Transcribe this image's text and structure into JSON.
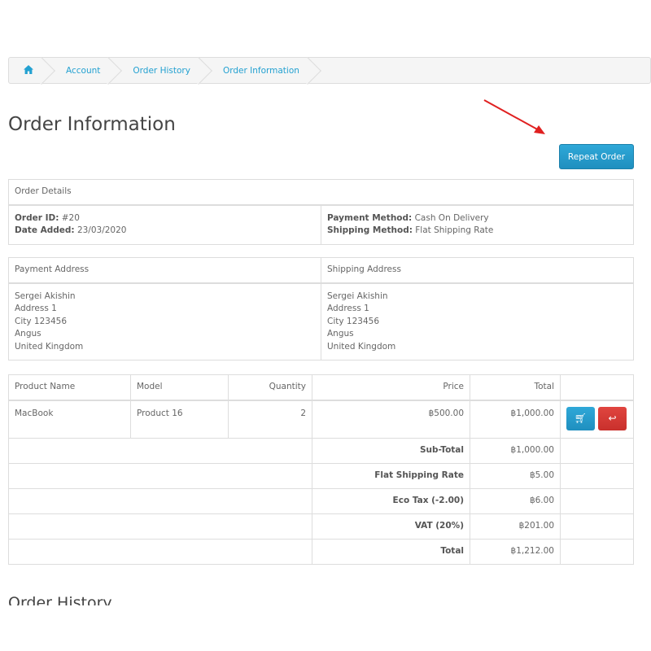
{
  "breadcrumb": {
    "home_icon": "home-icon",
    "items": [
      "Account",
      "Order History",
      "Order Information"
    ]
  },
  "page_title": "Order Information",
  "repeat_order_label": "Repeat Order",
  "order_details": {
    "header": "Order Details",
    "order_id_label": "Order ID:",
    "order_id": "#20",
    "date_added_label": "Date Added:",
    "date_added": "23/03/2020",
    "payment_method_label": "Payment Method:",
    "payment_method": "Cash On Delivery",
    "shipping_method_label": "Shipping Method:",
    "shipping_method": "Flat Shipping Rate"
  },
  "addresses": {
    "payment_header": "Payment Address",
    "shipping_header": "Shipping Address",
    "payment": [
      "Sergei Akishin",
      "Address 1",
      "City 123456",
      "Angus",
      "United Kingdom"
    ],
    "shipping": [
      "Sergei Akishin",
      "Address 1",
      "City 123456",
      "Angus",
      "United Kingdom"
    ]
  },
  "products": {
    "columns": [
      "Product Name",
      "Model",
      "Quantity",
      "Price",
      "Total"
    ],
    "rows": [
      {
        "name": "MacBook",
        "model": "Product 16",
        "quantity": "2",
        "price": "฿500.00",
        "total": "฿1,000.00"
      }
    ],
    "totals": [
      {
        "label": "Sub-Total",
        "value": "฿1,000.00"
      },
      {
        "label": "Flat Shipping Rate",
        "value": "฿5.00"
      },
      {
        "label": "Eco Tax (-2.00)",
        "value": "฿6.00"
      },
      {
        "label": "VAT (20%)",
        "value": "฿201.00"
      },
      {
        "label": "Total",
        "value": "฿1,212.00"
      }
    ]
  },
  "colors": {
    "link": "#23a1d1",
    "primary": "#229ac8",
    "danger": "#d9534f",
    "arrow": "#e02020"
  },
  "section_order_history": "Order History"
}
